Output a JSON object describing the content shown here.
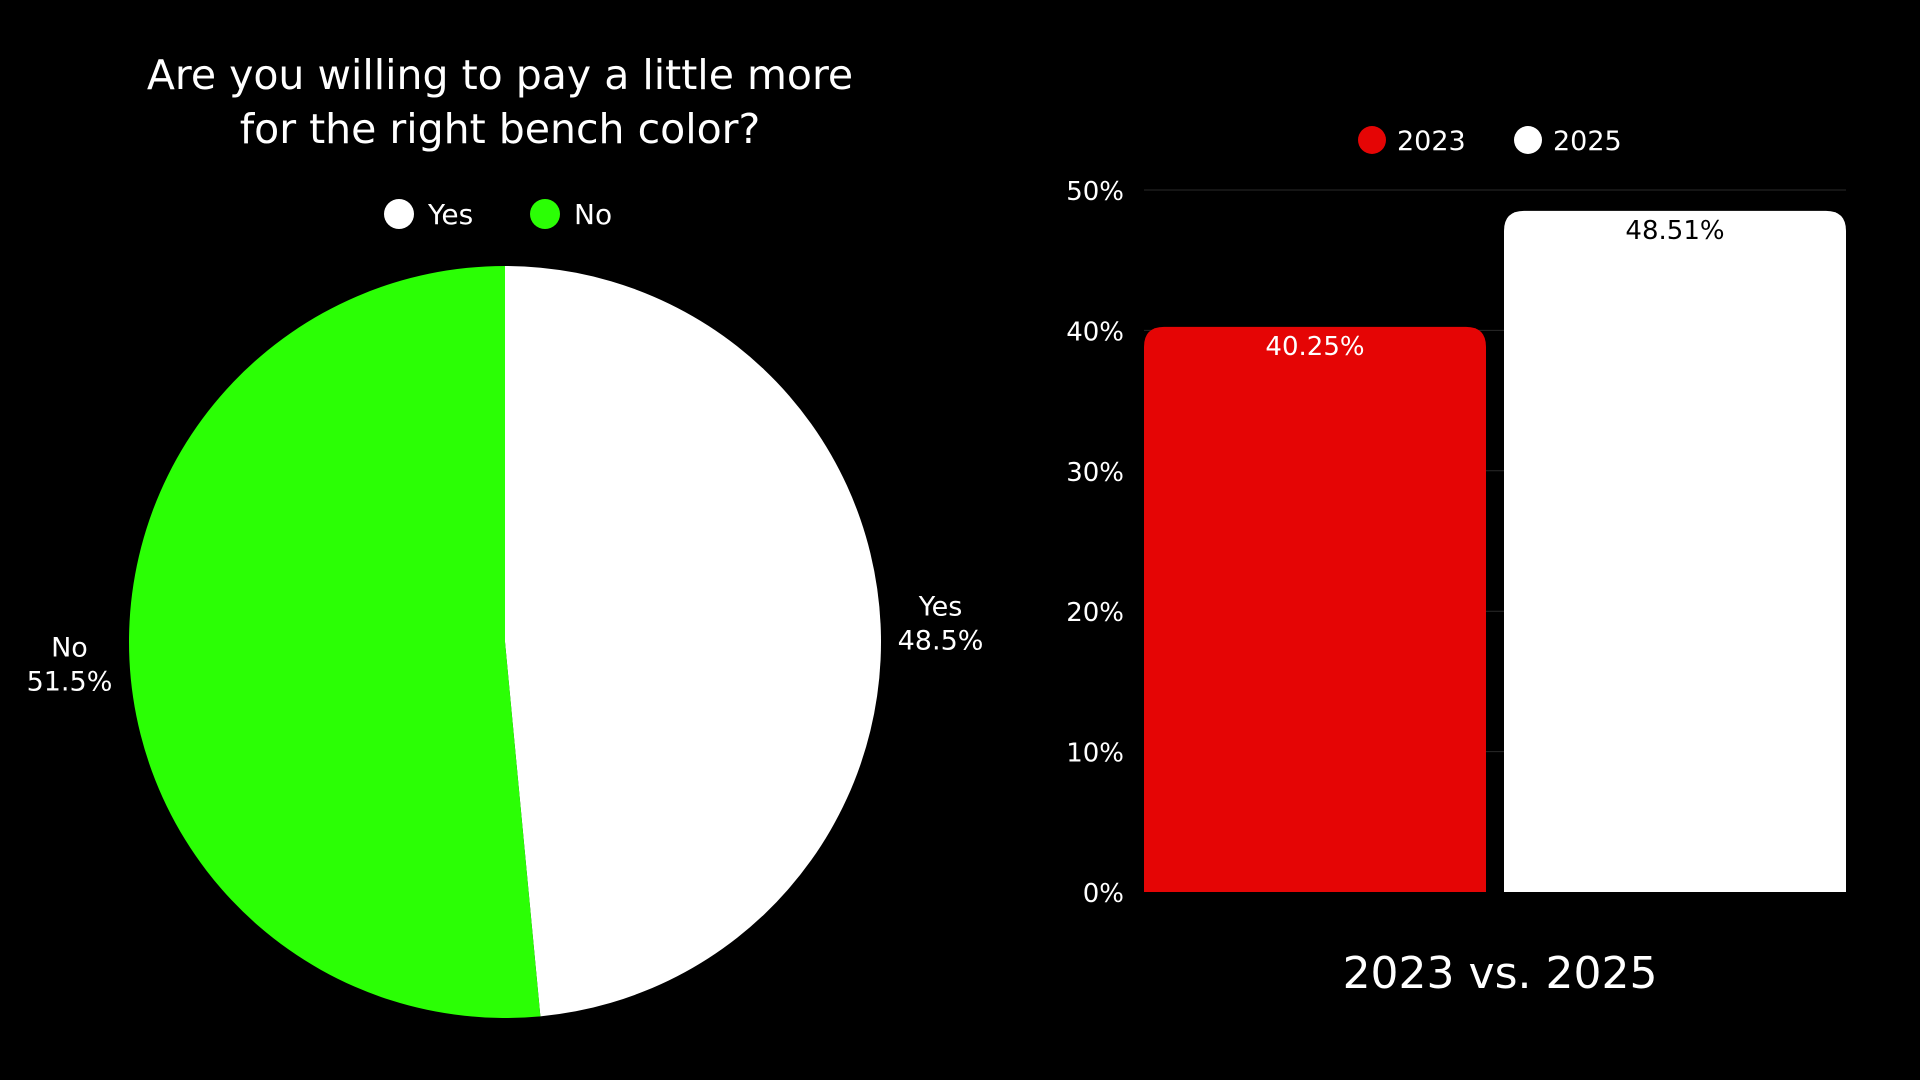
{
  "colors": {
    "background": "#000000",
    "yes": "#ffffff",
    "no": "#2bff05",
    "bar_2023": "#e50505",
    "bar_2025": "#ffffff",
    "grid": "#2a2a2a",
    "text": "#ffffff"
  },
  "chart_data": [
    {
      "type": "pie",
      "title": [
        "Are you willing to pay a little more",
        "for the right bench color?"
      ],
      "legend_position": "top-center",
      "slices": [
        {
          "name": "Yes",
          "value": 48.5,
          "label": "48.5%",
          "color": "#ffffff"
        },
        {
          "name": "No",
          "value": 51.5,
          "label": "51.5%",
          "color": "#2bff05"
        }
      ]
    },
    {
      "type": "bar",
      "title": "",
      "xlabel": "2023 vs. 2025",
      "ylabel": "",
      "ylim": [
        0,
        50
      ],
      "yticks": [
        "0%",
        "10%",
        "20%",
        "30%",
        "40%",
        "50%"
      ],
      "grid": true,
      "legend_position": "top-center",
      "series": [
        {
          "name": "2023",
          "values": [
            40.25
          ],
          "label": "40.25%",
          "color": "#e50505"
        },
        {
          "name": "2025",
          "values": [
            48.51
          ],
          "label": "48.51%",
          "color": "#ffffff"
        }
      ]
    }
  ]
}
